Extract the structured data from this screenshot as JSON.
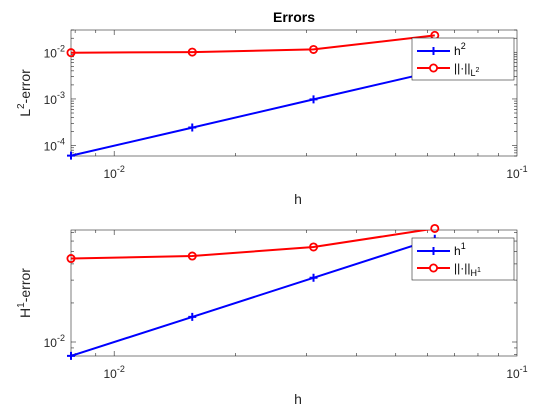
{
  "chart_data": [
    {
      "type": "line",
      "title": "Errors",
      "xlabel": "h",
      "ylabel": {
        "base": "L",
        "sup": "2",
        "rest": "-error"
      },
      "xscale": "log",
      "yscale": "log",
      "xlim": [
        0.0078125,
        0.1
      ],
      "ylim": [
        6e-05,
        0.03
      ],
      "x_ticks": [
        {
          "base": "10",
          "exp": "-2",
          "value": 0.01
        },
        {
          "base": "10",
          "exp": "-1",
          "value": 0.1
        }
      ],
      "y_ticks": [
        {
          "base": "10",
          "exp": "-4",
          "value": 0.0001
        },
        {
          "base": "10",
          "exp": "-3",
          "value": 0.001
        },
        {
          "base": "10",
          "exp": "-2",
          "value": 0.01
        }
      ],
      "legend_position": "top-right",
      "series": [
        {
          "label": {
            "base": "h",
            "sup": "2",
            "sub": ""
          },
          "color": "#0000ff",
          "marker": "plus",
          "x": [
            0.0078125,
            0.015625,
            0.03125,
            0.0625
          ],
          "y": [
            6.1e-05,
            0.000244,
            0.000977,
            0.003906
          ]
        },
        {
          "label": {
            "base": "||·||",
            "sup": "",
            "sub": "L",
            "subsup": "2"
          },
          "color": "#ff0000",
          "marker": "circle",
          "x": [
            0.0078125,
            0.015625,
            0.03125,
            0.0625
          ],
          "y": [
            0.0098,
            0.0101,
            0.0115,
            0.023
          ]
        }
      ]
    },
    {
      "type": "line",
      "title": "",
      "xlabel": "h",
      "ylabel": {
        "base": "H",
        "sup": "1",
        "rest": "-error"
      },
      "xscale": "log",
      "yscale": "log",
      "xlim": [
        0.0078125,
        0.1
      ],
      "ylim": [
        0.0078,
        0.073
      ],
      "x_ticks": [
        {
          "base": "10",
          "exp": "-2",
          "value": 0.01
        },
        {
          "base": "10",
          "exp": "-1",
          "value": 0.1
        }
      ],
      "y_ticks": [
        {
          "base": "10",
          "exp": "-2",
          "value": 0.01
        }
      ],
      "legend_position": "top-right",
      "series": [
        {
          "label": {
            "base": "h",
            "sup": "1",
            "sub": ""
          },
          "color": "#0000ff",
          "marker": "plus",
          "x": [
            0.0078125,
            0.015625,
            0.03125,
            0.0625
          ],
          "y": [
            0.0078125,
            0.015625,
            0.03125,
            0.0625
          ]
        },
        {
          "label": {
            "base": "||·||",
            "sup": "",
            "sub": "H",
            "subsup": "1"
          },
          "color": "#ff0000",
          "marker": "circle",
          "x": [
            0.0078125,
            0.015625,
            0.03125,
            0.0625
          ],
          "y": [
            0.044,
            0.046,
            0.054,
            0.075
          ]
        }
      ]
    }
  ]
}
